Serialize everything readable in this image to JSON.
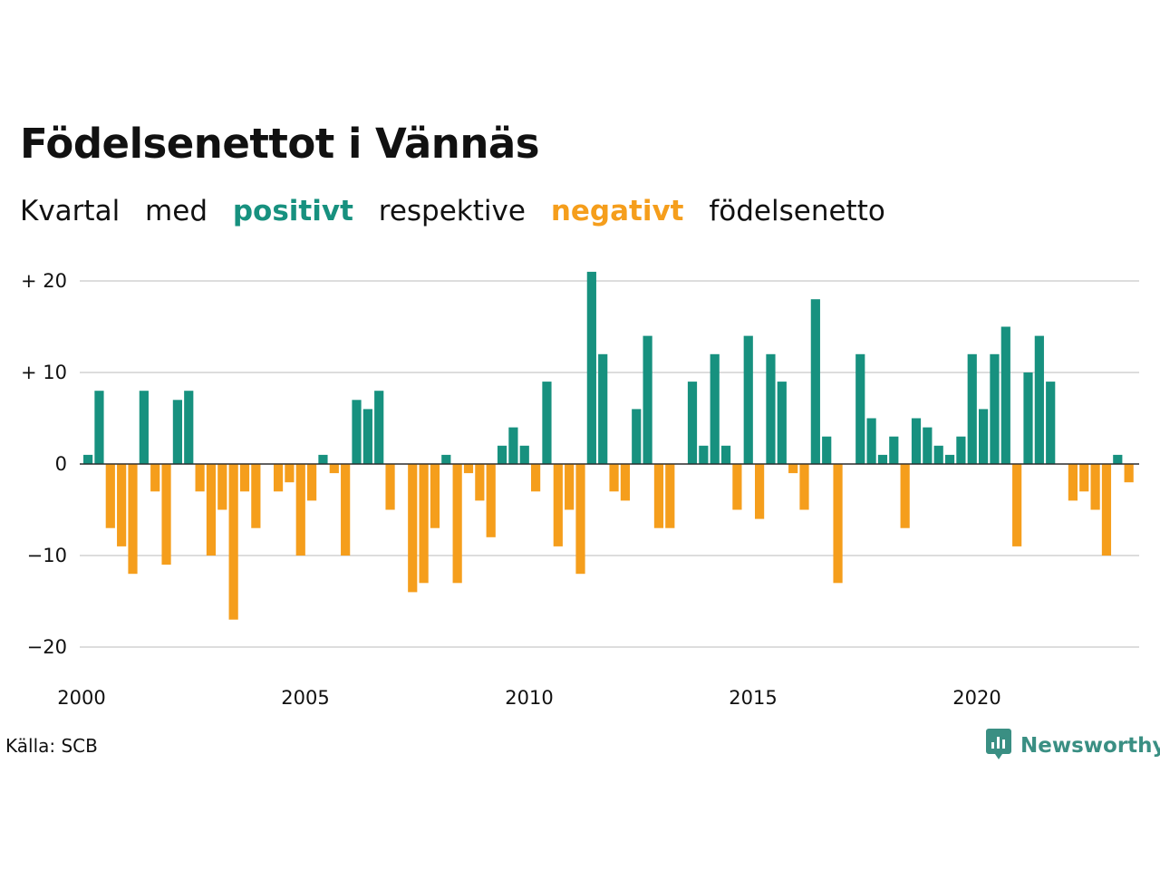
{
  "title": "Födelsenettot i Vännäs",
  "subtitle": {
    "part1": "Kvartal",
    "part2": "med",
    "positive_word": "positivt",
    "part3": "respektive",
    "negative_word": "negativt",
    "part4": "födelsenetto"
  },
  "source": "Källa: SCB",
  "brand": "Newsworthy",
  "colors": {
    "positive": "#17917f",
    "negative": "#f59e1c",
    "brand": "#3a8f83",
    "grid": "#dddddd"
  },
  "chart_data": {
    "type": "bar",
    "title": "Födelsenettot i Vännäs",
    "xlabel": "",
    "ylabel": "",
    "ylim": [
      -22,
      22
    ],
    "yticks": [
      20,
      10,
      0,
      -10,
      -20
    ],
    "ytick_labels": [
      "+ 20",
      "+ 10",
      "0",
      "−10",
      "−20"
    ],
    "xticks": [
      2000,
      2005,
      2010,
      2015,
      2020
    ],
    "xtick_labels": [
      "2000",
      "2005",
      "2010",
      "2015",
      "2020"
    ],
    "grid": true,
    "legend": "none",
    "x_start_year": 2000,
    "periods_per_year": 4,
    "values": [
      1,
      8,
      -7,
      -9,
      -12,
      8,
      -3,
      -11,
      7,
      8,
      -3,
      -10,
      -5,
      -17,
      -3,
      -7,
      0,
      -3,
      -2,
      -10,
      -4,
      1,
      -1,
      -10,
      7,
      6,
      8,
      -5,
      0,
      -14,
      -13,
      -7,
      1,
      -13,
      -1,
      -4,
      -8,
      2,
      4,
      2,
      -3,
      9,
      -9,
      -5,
      -12,
      21,
      12,
      -3,
      -4,
      6,
      14,
      -7,
      -7,
      0,
      9,
      2,
      12,
      2,
      -5,
      14,
      -6,
      12,
      9,
      -1,
      -5,
      18,
      3,
      -13,
      0,
      12,
      5,
      1,
      3,
      -7,
      5,
      4,
      2,
      1,
      3,
      12,
      6,
      12,
      15,
      -9,
      10,
      14,
      9,
      0,
      -4,
      -3,
      -5,
      -10,
      1,
      -2
    ]
  }
}
